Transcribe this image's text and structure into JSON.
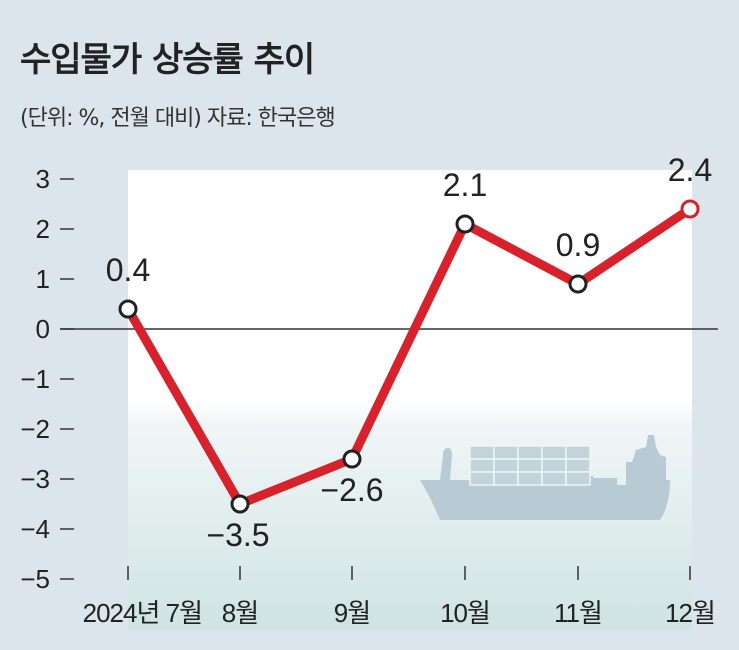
{
  "title": "수입물가 상승률 추이",
  "subtitle": "(단위: %, 전월 대비) 자료: 한국은행",
  "chart_data": {
    "type": "line",
    "title": "수입물가 상승률 추이",
    "subtitle": "(단위: %, 전월 대비) 자료: 한국은행",
    "categories": [
      "2024년 7월",
      "8월",
      "9월",
      "10월",
      "11월",
      "12월"
    ],
    "values": [
      0.4,
      -3.5,
      -2.6,
      2.1,
      0.9,
      2.4
    ],
    "value_labels": [
      "0.4",
      "−3.5",
      "−2.6",
      "2.1",
      "0.9",
      "2.4"
    ],
    "yticks": [
      3,
      2,
      1,
      0,
      -1,
      -2,
      -3,
      -4,
      -5
    ],
    "ytick_labels": [
      "3",
      "2",
      "1",
      "0",
      "−1",
      "−2",
      "−3",
      "−4",
      "−5"
    ],
    "ylim": [
      -5,
      3
    ],
    "xlabel": "",
    "ylabel": "",
    "colors": {
      "line": "#d7222b",
      "highlight": "#d7222b",
      "background": "#dce5ec",
      "ship": "#b8cad3"
    }
  }
}
